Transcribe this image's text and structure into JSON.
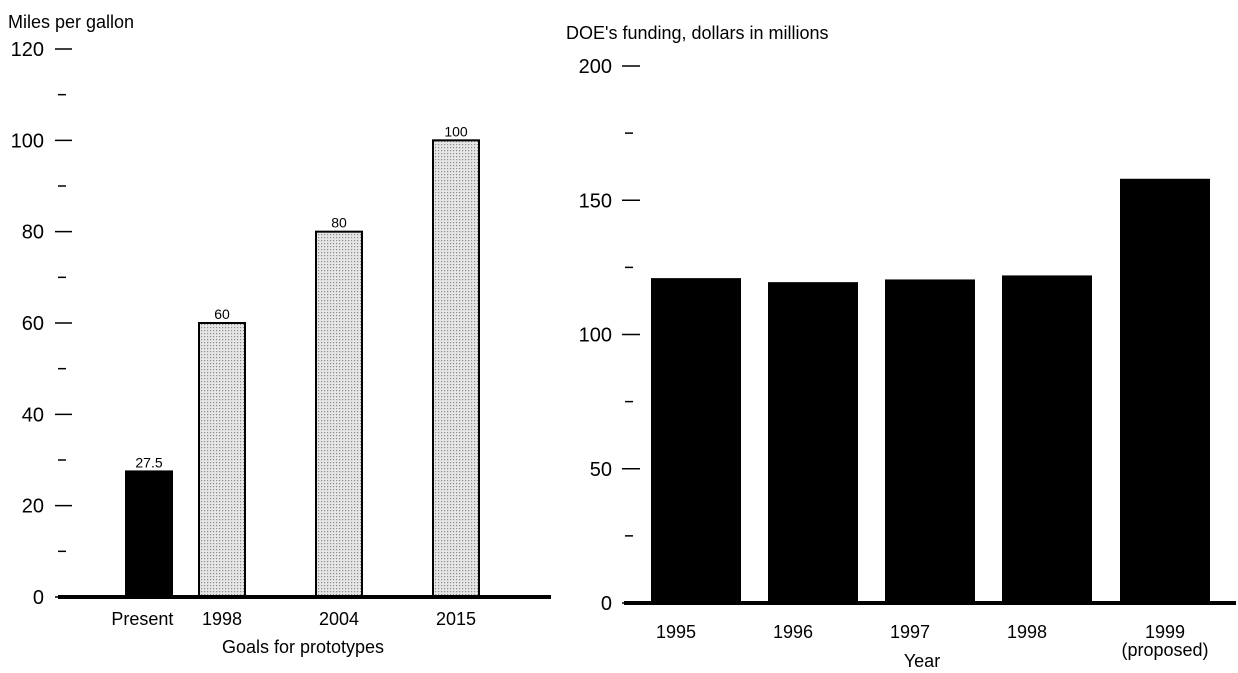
{
  "chart_data": [
    {
      "type": "bar",
      "title": "Miles per gallon",
      "xlabel": "Goals for prototypes",
      "ylabel": "",
      "ylim": [
        0,
        120
      ],
      "yticks": [
        0,
        20,
        40,
        60,
        80,
        100,
        120
      ],
      "categories": [
        "Present",
        "1998",
        "2004",
        "2015"
      ],
      "values": [
        27.5,
        60,
        80,
        100
      ],
      "data_labels": [
        "27.5",
        "60",
        "80",
        "100"
      ],
      "bar_styles": [
        "solid",
        "dotted",
        "dotted",
        "dotted"
      ],
      "grid": false,
      "legend": "none"
    },
    {
      "type": "bar",
      "title": "DOE's funding, dollars in millions",
      "xlabel": "Year",
      "ylabel": "",
      "ylim": [
        0,
        200
      ],
      "yticks": [
        0,
        50,
        100,
        150,
        200
      ],
      "categories": [
        "1995",
        "1996",
        "1997",
        "1998",
        "1999"
      ],
      "category_sublabels": [
        "",
        "",
        "",
        "",
        "(proposed)"
      ],
      "values": [
        121,
        119.5,
        120.5,
        122,
        158
      ],
      "grid": false,
      "legend": "none"
    }
  ],
  "colors": {
    "solid_bar": "#000000",
    "dotted_bar_fill": "#d8d8d8",
    "axis": "#000000"
  }
}
